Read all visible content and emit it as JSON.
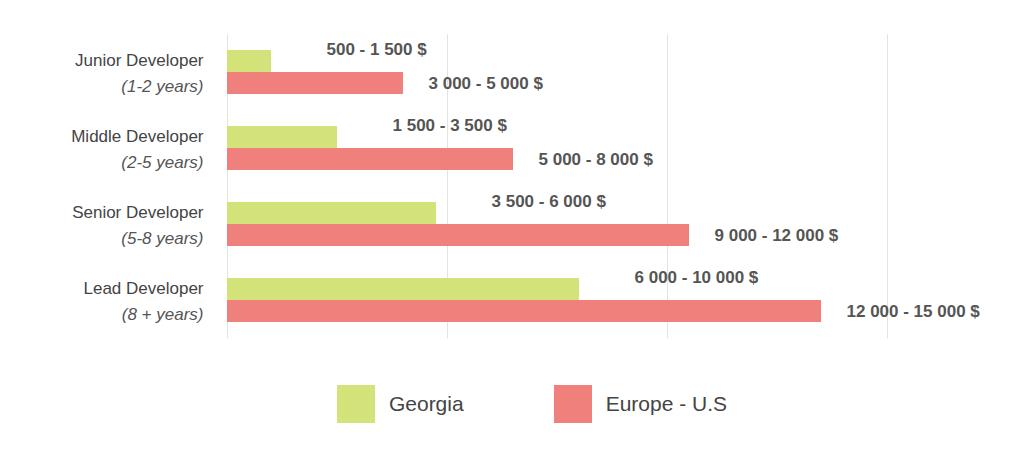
{
  "chart_data": {
    "type": "bar",
    "orientation": "horizontal",
    "categories": [
      "Junior Developer",
      "Middle Developer",
      "Senior Developer",
      "Lead Developer"
    ],
    "category_notes": [
      "(1-2 years)",
      "(2-5 years)",
      "(5-8 years)",
      "(8 + years)"
    ],
    "series": [
      {
        "name": "Georgia",
        "color": "#d4e27a",
        "values": [
          1000,
          2500,
          4750,
          8000
        ],
        "range_labels": [
          "500 - 1 500 $",
          "1 500 - 3 500 $",
          "3 500 - 6 000 $",
          "6 000 - 10 000 $"
        ]
      },
      {
        "name": "Europe - U.S",
        "color": "#f0807b",
        "values": [
          4000,
          6500,
          10500,
          13500
        ],
        "range_labels": [
          "3 000 - 5 000 $",
          "5 000 - 8 000 $",
          "9 000 - 12 000 $",
          "12 000 - 15 000 $"
        ]
      }
    ],
    "xlim": [
      0,
      15000
    ],
    "xticks": [
      0,
      5000,
      10000,
      15000
    ],
    "grid": true,
    "tick_labels": false,
    "legend": "bottom"
  }
}
